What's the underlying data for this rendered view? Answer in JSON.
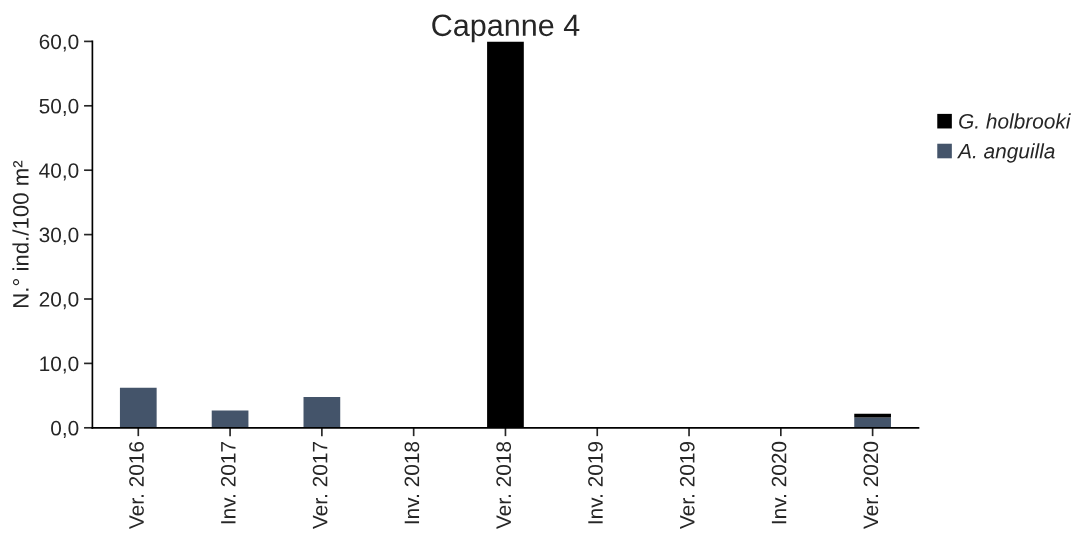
{
  "chart_data": {
    "type": "bar",
    "title": "Capanne 4",
    "ylabel": "N.° ind./100 m²",
    "stacked": true,
    "categories": [
      "Ver. 2016",
      "Inv. 2017",
      "Ver. 2017",
      "Inv. 2018",
      "Ver. 2018",
      "Inv. 2019",
      "Ver. 2019",
      "Inv. 2020",
      "Ver. 2020"
    ],
    "series": [
      {
        "name": "A. anguilla",
        "color": "#44546a",
        "values": [
          6.2,
          2.7,
          4.8,
          null,
          null,
          null,
          null,
          null,
          1.6
        ]
      },
      {
        "name": "G. holbrooki",
        "color": "#000000",
        "values": [
          null,
          null,
          null,
          null,
          60,
          null,
          null,
          null,
          0.6
        ]
      }
    ],
    "ylim": [
      0,
      60
    ],
    "yticks": [
      {
        "value": 0,
        "label": "0,0"
      },
      {
        "value": 10,
        "label": "10,0"
      },
      {
        "value": 20,
        "label": "20,0"
      },
      {
        "value": 30,
        "label": "30,0"
      },
      {
        "value": 40,
        "label": "40,0"
      },
      {
        "value": 50,
        "label": "50,0"
      },
      {
        "value": 60,
        "label": "60,0"
      }
    ],
    "grid": false,
    "legend": "right"
  }
}
